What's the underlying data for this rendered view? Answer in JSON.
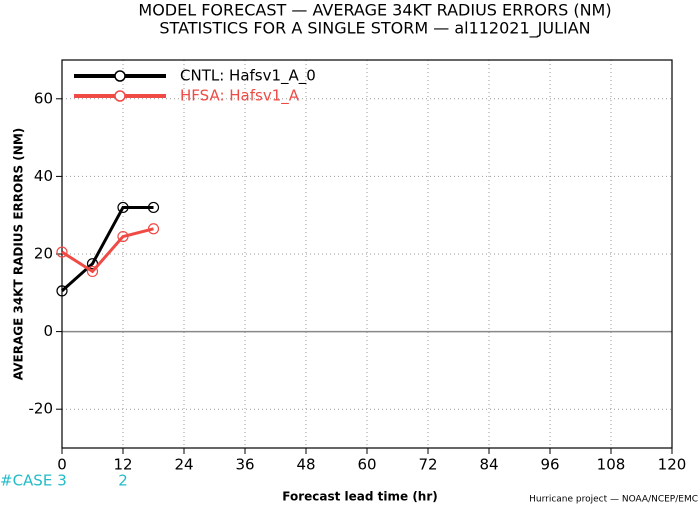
{
  "chart_data": {
    "type": "line",
    "title": "MODEL FORECAST — AVERAGE 34KT RADIUS ERRORS (NM)",
    "subtitle": "STATISTICS FOR A SINGLE STORM — al112021_JULIAN",
    "x_label": "Forecast lead time (hr)",
    "y_label": "AVERAGE 34KT RADIUS ERRORS (NM)",
    "footer": "Hurricane project — NOAA/NCEP/EMC",
    "x": [
      0,
      6,
      12,
      18
    ],
    "series": [
      {
        "name": "CNTL: Hafsv1_A_0",
        "color": "#000000",
        "values": [
          10.5,
          17.5,
          32,
          32
        ]
      },
      {
        "name": "HFSA: Hafsv1_A",
        "color": "#f04a45",
        "values": [
          20.5,
          15.5,
          24.5,
          26.5
        ]
      }
    ],
    "xlim": [
      0,
      120
    ],
    "xticks": [
      0,
      12,
      24,
      36,
      48,
      60,
      72,
      84,
      96,
      108,
      120
    ],
    "ylim": [
      -30,
      70
    ],
    "yticks": [
      -20,
      0,
      20,
      40,
      60
    ],
    "grid": true,
    "legend": "upper left",
    "case_label": "#CASE",
    "case_x": [
      0,
      12
    ],
    "case_counts": [
      3,
      2
    ],
    "case_color": "#22bcc8"
  }
}
